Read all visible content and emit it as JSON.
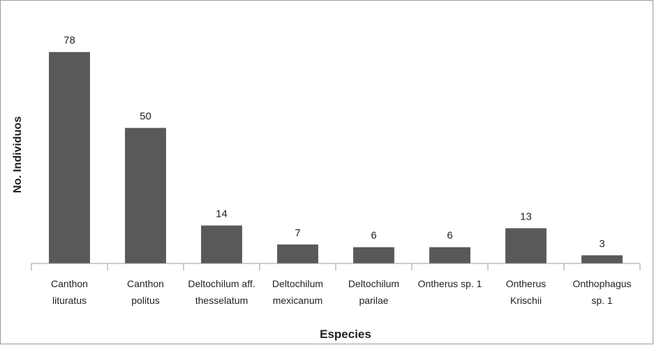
{
  "chart_data": {
    "type": "bar",
    "y_label": "No. Individuos",
    "x_label": "Especies",
    "categories": [
      [
        "Canthon",
        "lituratus"
      ],
      [
        "Canthon",
        "politus"
      ],
      [
        "Deltochilum aff.",
        "thesselatum"
      ],
      [
        "Deltochilum",
        "mexicanum"
      ],
      [
        "Deltochilum",
        "parilae"
      ],
      [
        "Ontherus sp. 1"
      ],
      [
        "Ontherus",
        "Krischii"
      ],
      [
        "Onthophagus",
        "sp. 1"
      ]
    ],
    "values": [
      78,
      50,
      14,
      7,
      6,
      6,
      13,
      3
    ],
    "color": "#595959",
    "ylim": [
      0,
      90
    ]
  }
}
